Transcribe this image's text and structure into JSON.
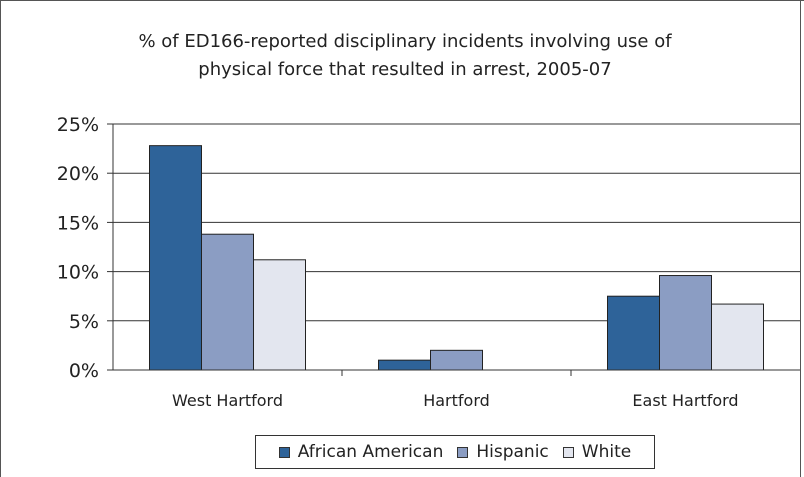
{
  "chart_data": {
    "type": "bar",
    "title": "% of ED166-reported disciplinary incidents involving use of physical force that resulted in arrest, 2005-07",
    "title_lines": [
      "% of ED166-reported disciplinary incidents involving use of",
      "physical force that resulted in arrest, 2005-07"
    ],
    "categories": [
      "West Hartford",
      "Hartford",
      "East Hartford"
    ],
    "series": [
      {
        "name": "African American",
        "color": "#2e6399",
        "values": [
          22.8,
          1.0,
          7.5
        ]
      },
      {
        "name": "Hispanic",
        "color": "#8b9dc3",
        "values": [
          13.8,
          2.0,
          9.6
        ]
      },
      {
        "name": "White",
        "color": "#e3e6ef",
        "values": [
          11.2,
          0.0,
          6.7
        ]
      }
    ],
    "ylim": [
      0,
      25
    ],
    "yticks": [
      0,
      5,
      10,
      15,
      20,
      25
    ],
    "ytick_labels": [
      "0%",
      "5%",
      "10%",
      "15%",
      "20%",
      "25%"
    ],
    "grid": true,
    "legend_position": "bottom"
  }
}
